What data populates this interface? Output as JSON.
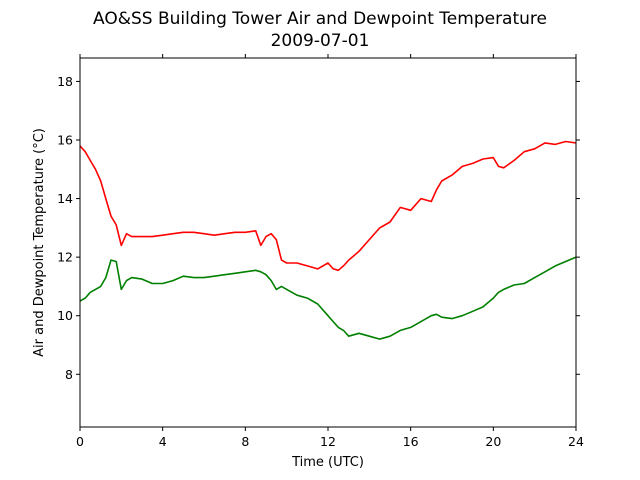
{
  "chart_data": {
    "type": "line",
    "title": "AO&SS Building Tower Air and Dewpoint Temperature",
    "subtitle": "2009-07-01",
    "xlabel": "Time (UTC)",
    "ylabel": "Air and Dewpoint Temperature (°C)",
    "xlim": [
      0,
      24
    ],
    "ylim": [
      6.2,
      18.8
    ],
    "xticks": [
      0,
      4,
      8,
      12,
      16,
      20,
      24
    ],
    "yticks": [
      8,
      10,
      12,
      14,
      16,
      18
    ],
    "grid": false,
    "legend": "none",
    "series": [
      {
        "color": "#ff0000",
        "x": [
          0,
          0.25,
          0.5,
          0.75,
          1.0,
          1.25,
          1.5,
          1.75,
          2.0,
          2.25,
          2.5,
          3.0,
          3.5,
          4.0,
          4.5,
          5.0,
          5.5,
          6.0,
          6.5,
          7.0,
          7.5,
          8.0,
          8.5,
          8.75,
          9.0,
          9.25,
          9.5,
          9.75,
          10.0,
          10.5,
          11.0,
          11.5,
          12.0,
          12.25,
          12.5,
          12.75,
          13.0,
          13.5,
          14.0,
          14.5,
          15.0,
          15.5,
          16.0,
          16.5,
          17.0,
          17.25,
          17.5,
          18.0,
          18.5,
          19.0,
          19.5,
          20.0,
          20.25,
          20.5,
          21.0,
          21.5,
          22.0,
          22.5,
          23.0,
          23.5,
          24.0
        ],
        "values": [
          15.8,
          15.6,
          15.3,
          15.0,
          14.6,
          14.0,
          13.4,
          13.1,
          12.4,
          12.8,
          12.7,
          12.7,
          12.7,
          12.75,
          12.8,
          12.85,
          12.85,
          12.8,
          12.75,
          12.8,
          12.85,
          12.85,
          12.9,
          12.4,
          12.7,
          12.8,
          12.6,
          11.9,
          11.8,
          11.8,
          11.7,
          11.6,
          11.8,
          11.6,
          11.55,
          11.7,
          11.9,
          12.2,
          12.6,
          13.0,
          13.2,
          13.7,
          13.6,
          14.0,
          13.9,
          14.3,
          14.6,
          14.8,
          15.1,
          15.2,
          15.35,
          15.4,
          15.1,
          15.05,
          15.3,
          15.6,
          15.7,
          15.9,
          15.85,
          15.95,
          15.9
        ]
      },
      {
        "color": "#008000",
        "x": [
          0,
          0.25,
          0.5,
          0.75,
          1.0,
          1.25,
          1.5,
          1.75,
          2.0,
          2.25,
          2.5,
          3.0,
          3.5,
          4.0,
          4.5,
          5.0,
          5.5,
          6.0,
          6.5,
          7.0,
          7.5,
          8.0,
          8.5,
          8.75,
          9.0,
          9.25,
          9.5,
          9.75,
          10.0,
          10.5,
          11.0,
          11.5,
          12.0,
          12.25,
          12.5,
          12.75,
          13.0,
          13.5,
          14.0,
          14.5,
          15.0,
          15.5,
          16.0,
          16.5,
          17.0,
          17.25,
          17.5,
          18.0,
          18.5,
          19.0,
          19.5,
          20.0,
          20.25,
          20.5,
          21.0,
          21.5,
          22.0,
          22.5,
          23.0,
          23.5,
          24.0
        ],
        "values": [
          10.5,
          10.6,
          10.8,
          10.9,
          11.0,
          11.3,
          11.9,
          11.85,
          10.9,
          11.2,
          11.3,
          11.25,
          11.1,
          11.1,
          11.2,
          11.35,
          11.3,
          11.3,
          11.35,
          11.4,
          11.45,
          11.5,
          11.55,
          11.5,
          11.4,
          11.2,
          10.9,
          11.0,
          10.9,
          10.7,
          10.6,
          10.4,
          10.0,
          9.8,
          9.6,
          9.5,
          9.3,
          9.4,
          9.3,
          9.2,
          9.3,
          9.5,
          9.6,
          9.8,
          10.0,
          10.05,
          9.95,
          9.9,
          10.0,
          10.15,
          10.3,
          10.6,
          10.8,
          10.9,
          11.05,
          11.1,
          11.3,
          11.5,
          11.7,
          11.85,
          12.0
        ]
      }
    ]
  }
}
